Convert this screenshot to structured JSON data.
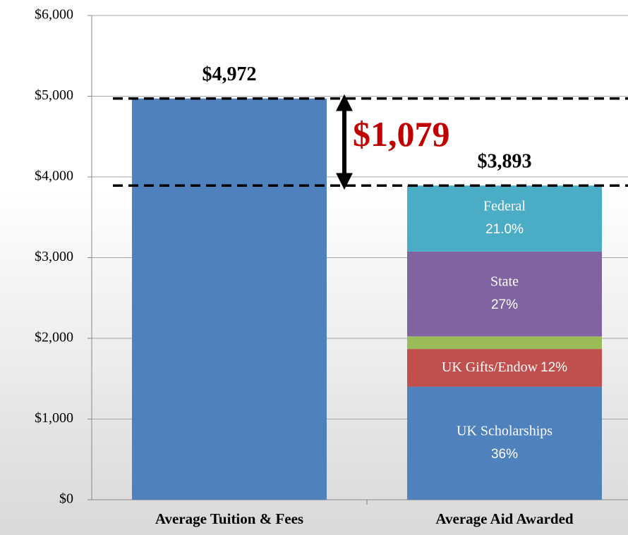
{
  "chart_data": {
    "type": "stacked_bar",
    "categories": [
      "Average Tuition & Fees",
      "Average Aid Awarded"
    ],
    "series": [
      {
        "color": "#4f81bd",
        "values": [
          4972,
          null
        ]
      },
      {
        "name": "UK Scholarships",
        "color": "#4f81bd",
        "values": [
          null,
          1401
        ],
        "percent_label": "36%"
      },
      {
        "name": "UK Gifts/Endow",
        "color": "#c0504d",
        "values": [
          null,
          467
        ],
        "percent_label": "12%"
      },
      {
        "color": "#9bbb59",
        "values": [
          null,
          156
        ]
      },
      {
        "name": "State",
        "color": "#8064a2",
        "values": [
          null,
          1051
        ],
        "percent_label": "27%"
      },
      {
        "name": "Federal",
        "color": "#4bacc6",
        "values": [
          null,
          818
        ],
        "percent_label": "21.0%"
      }
    ],
    "total_labels": [
      "$4,972",
      "$3,893"
    ],
    "annotation": "$1,079",
    "ylim": [
      0,
      6000
    ],
    "yticks": [
      {
        "value": 0,
        "label": "$0"
      },
      {
        "value": 1000,
        "label": "$1,000"
      },
      {
        "value": 2000,
        "label": "$2,000"
      },
      {
        "value": 3000,
        "label": "$3,000"
      },
      {
        "value": 4000,
        "label": "$4,000"
      },
      {
        "value": 5000,
        "label": "$5,000"
      },
      {
        "value": 6000,
        "label": "$6,000"
      }
    ],
    "grid": true
  }
}
